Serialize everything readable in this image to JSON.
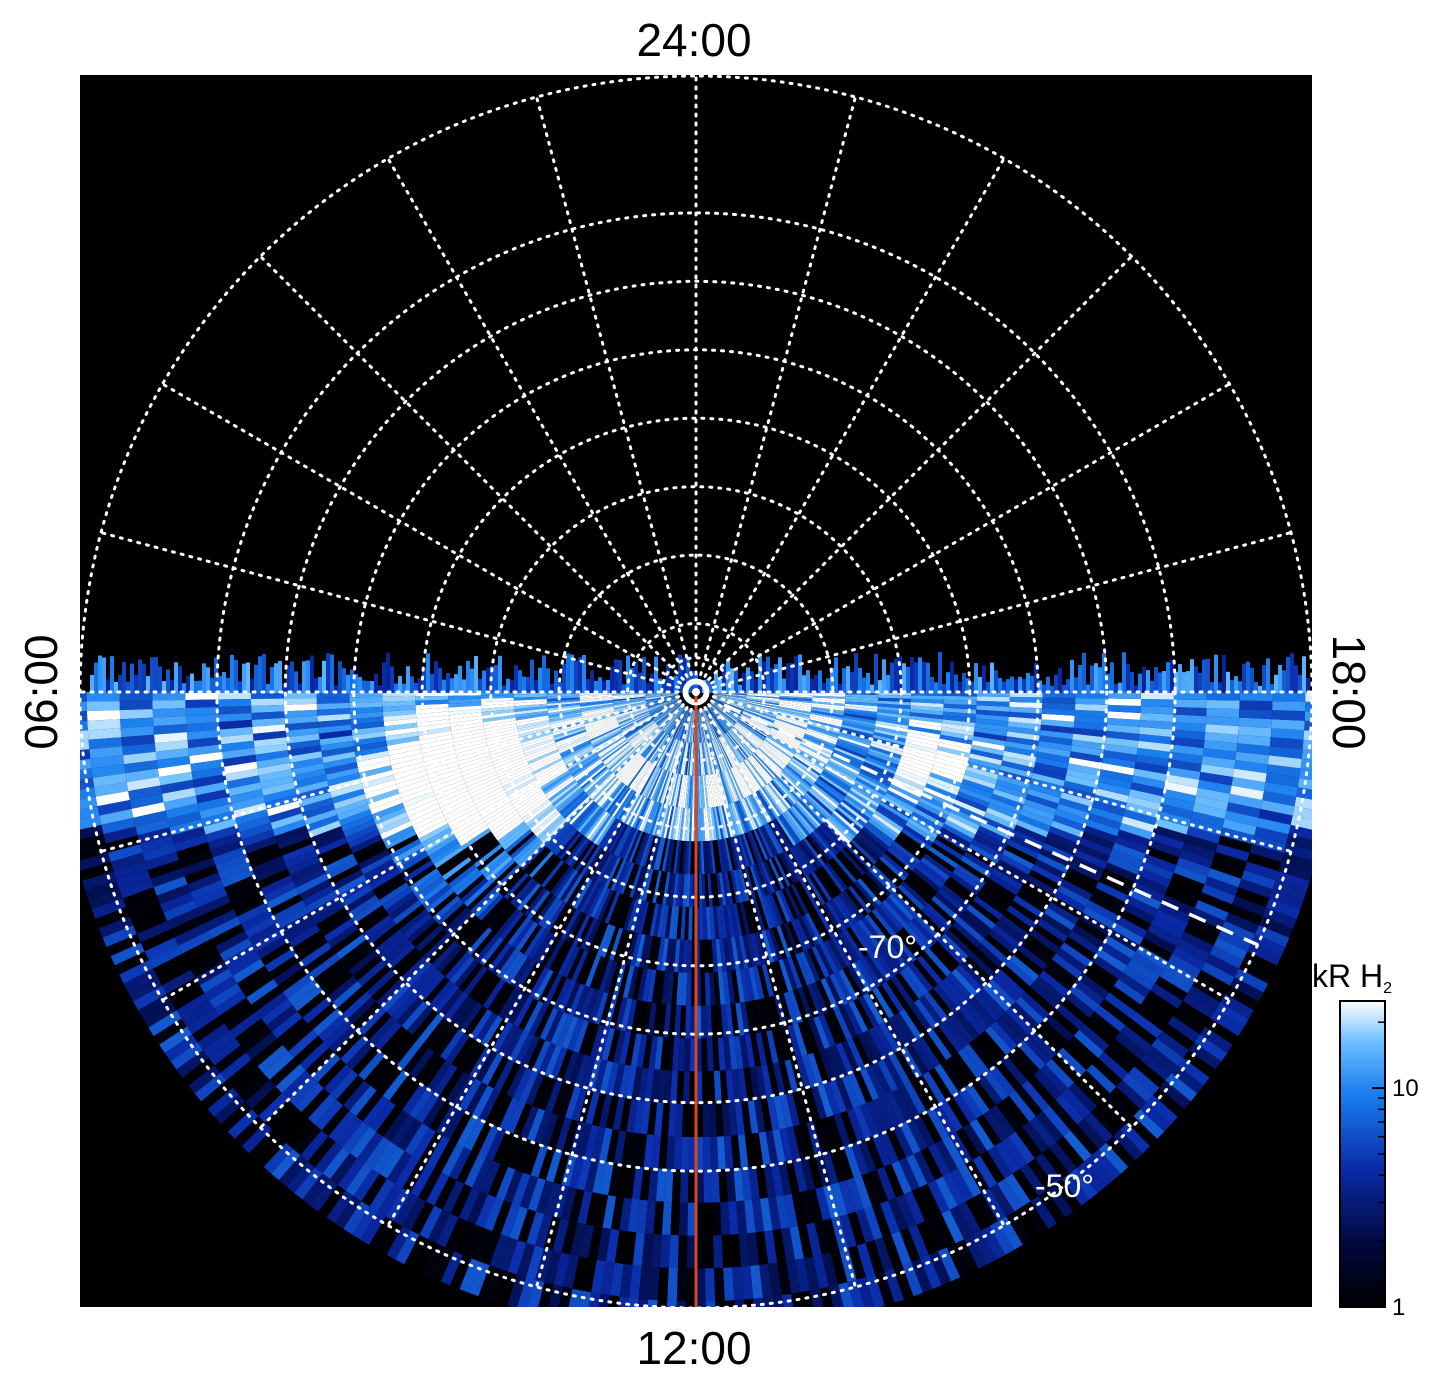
{
  "chart_data": {
    "type": "heatmap",
    "projection": "polar (south pole, view from above)",
    "local_time_labels": {
      "top": "24:00",
      "bottom": "12:00",
      "left": "06:00",
      "right": "18:00"
    },
    "latitude_labels": [
      {
        "text": "-70°",
        "value": -70
      },
      {
        "text": "-50°",
        "value": -50
      }
    ],
    "grid": true,
    "grid_latitudes": [
      -85,
      -80,
      -70,
      -60,
      -50,
      -40,
      -30,
      -20
    ],
    "grid_meridian_step_hours": 1,
    "observed_region": "dayside hemisphere (06:00 through 12:00 to 18:00)",
    "colorbar": {
      "title": "kR H",
      "title_subscript": "2",
      "scale": "log",
      "range": [
        1,
        25
      ],
      "ticks": [
        {
          "label": "1",
          "value": 1
        },
        {
          "label": "10",
          "value": 10
        }
      ]
    },
    "colors": {
      "background": "#000000",
      "grid": "#ffffff",
      "noon_line": "#d9461e",
      "colormap": [
        "#000000",
        "#00083a",
        "#0a2aa8",
        "#1a7ff0",
        "#6fc0ff",
        "#ffffff"
      ]
    }
  }
}
